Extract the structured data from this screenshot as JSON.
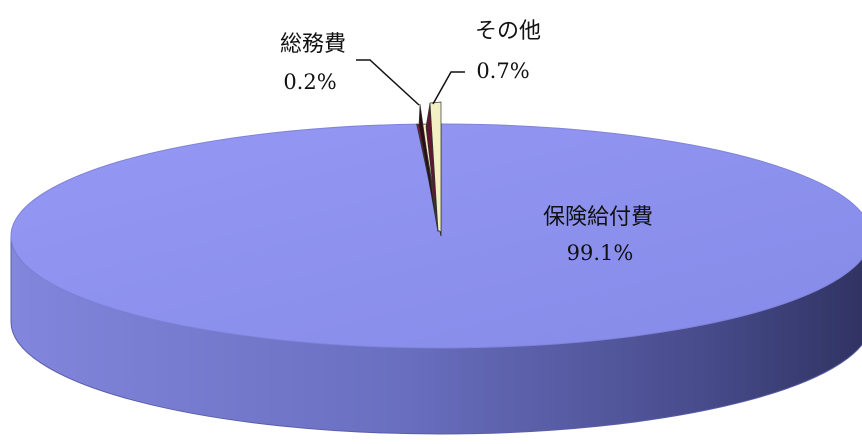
{
  "chart_data": {
    "type": "pie",
    "style": "3d",
    "title": "",
    "slices": [
      {
        "label": "保険給付費",
        "value": 99.1,
        "value_label": "99.1%",
        "color": "#8a8ff0"
      },
      {
        "label": "総務費",
        "value": 0.2,
        "value_label": "0.2%",
        "color": "#7a1f3c"
      },
      {
        "label": "その他",
        "value": 0.7,
        "value_label": "0.7%",
        "color": "#f4f2c6"
      }
    ]
  }
}
